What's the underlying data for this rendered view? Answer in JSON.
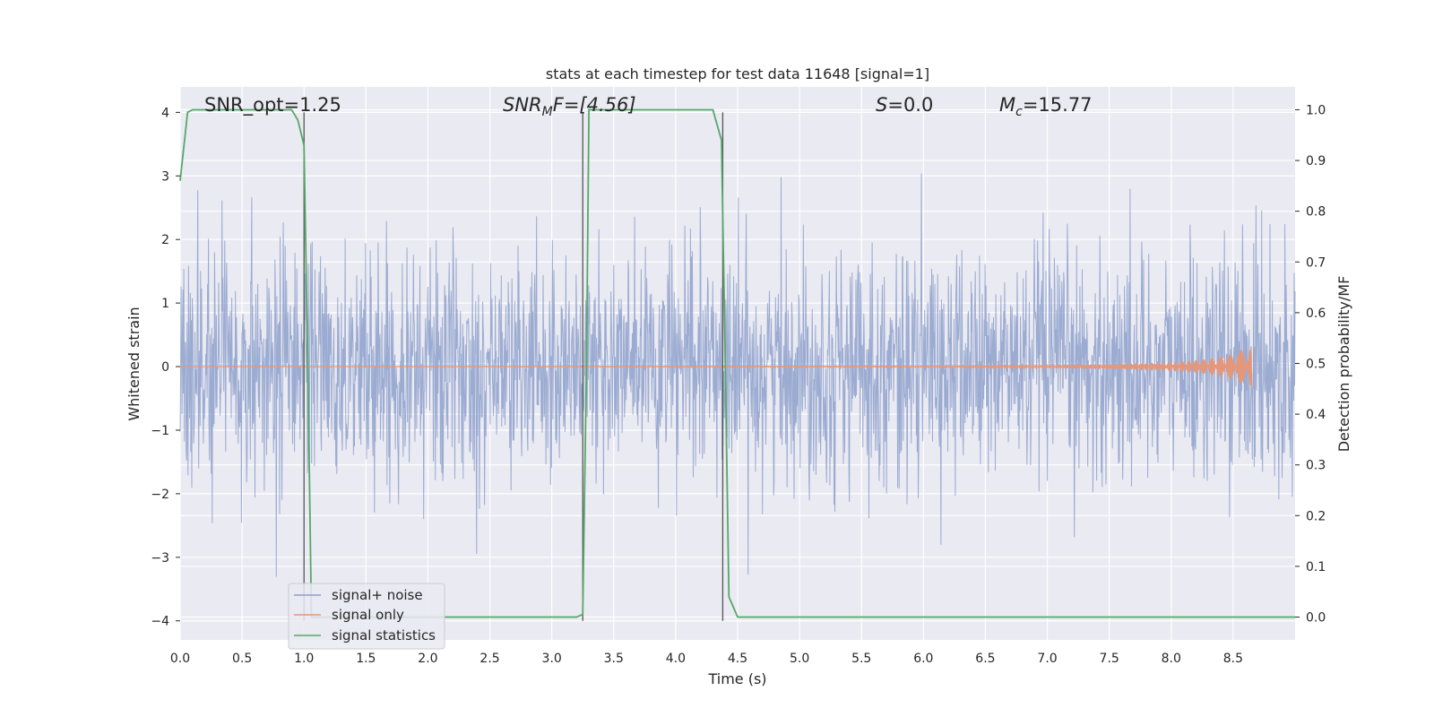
{
  "chart_data": {
    "type": "line",
    "title": "stats at each timestep for test data 11648 [signal=1]",
    "xlabel": "Time (s)",
    "ylabel": "Whitened strain",
    "y2label": "Detection probability/MF",
    "xlim": [
      0.0,
      9.0
    ],
    "ylim": [
      -4.3,
      4.4
    ],
    "y2lim": [
      -0.045,
      1.045
    ],
    "x_ticks": [
      "0.0",
      "0.5",
      "1.0",
      "1.5",
      "2.0",
      "2.5",
      "3.0",
      "3.5",
      "4.0",
      "4.5",
      "5.0",
      "5.5",
      "6.0",
      "6.5",
      "7.0",
      "7.5",
      "8.0",
      "8.5"
    ],
    "y_ticks": [
      "−4",
      "−3",
      "−2",
      "−1",
      "0",
      "1",
      "2",
      "3",
      "4"
    ],
    "y2_ticks": [
      "0.0",
      "0.1",
      "0.2",
      "0.3",
      "0.4",
      "0.5",
      "0.6",
      "0.7",
      "0.8",
      "0.9",
      "1.0"
    ],
    "grid": true,
    "legend_position": "lower-left",
    "annotations": {
      "snr_opt": "SNR_opt=1.25",
      "snr_mf_base": "SNR",
      "snr_mf_sub": "M",
      "snr_mf_rest": "F=[4.56]",
      "s_var": "S",
      "s_rest": "=0.0",
      "mc_var": "M",
      "mc_sub": "c",
      "mc_rest": "=15.77"
    },
    "vertical_lines_x": [
      1.0,
      3.25,
      4.38
    ],
    "series": [
      {
        "name": "signal+ noise",
        "color": "#8da0cb",
        "axis": "left",
        "description_stats": {
          "mean": 0.0,
          "std": 0.85,
          "x_start": 0.0,
          "x_end": 9.0
        }
      },
      {
        "name": "signal only",
        "color": "#e5977b",
        "axis": "left",
        "envelope": {
          "x": [
            0.0,
            6.0,
            7.0,
            7.5,
            8.0,
            8.3,
            8.5,
            8.6,
            8.65
          ],
          "amp": [
            0.0,
            0.01,
            0.02,
            0.04,
            0.07,
            0.12,
            0.2,
            0.3,
            0.35
          ]
        }
      },
      {
        "name": "signal statistics",
        "color": "#55a868",
        "axis": "right",
        "x": [
          0.0,
          0.06,
          0.1,
          0.2,
          0.5,
          0.9,
          0.95,
          1.0,
          1.03,
          1.06,
          1.1,
          1.2,
          2.0,
          3.0,
          3.2,
          3.25,
          3.28,
          3.3,
          3.35,
          3.5,
          4.0,
          4.3,
          4.37,
          4.4,
          4.43,
          4.5,
          5.0,
          6.0,
          7.0,
          8.0,
          9.0
        ],
        "y": [
          0.86,
          0.995,
          1.0,
          1.0,
          1.0,
          1.0,
          0.98,
          0.93,
          0.5,
          0.0,
          0.0,
          0.0,
          0.0,
          0.0,
          0.0,
          0.005,
          0.5,
          1.0,
          1.0,
          1.0,
          1.0,
          1.0,
          0.94,
          0.5,
          0.04,
          0.0,
          0.0,
          0.0,
          0.0,
          0.0,
          0.0
        ]
      }
    ]
  }
}
